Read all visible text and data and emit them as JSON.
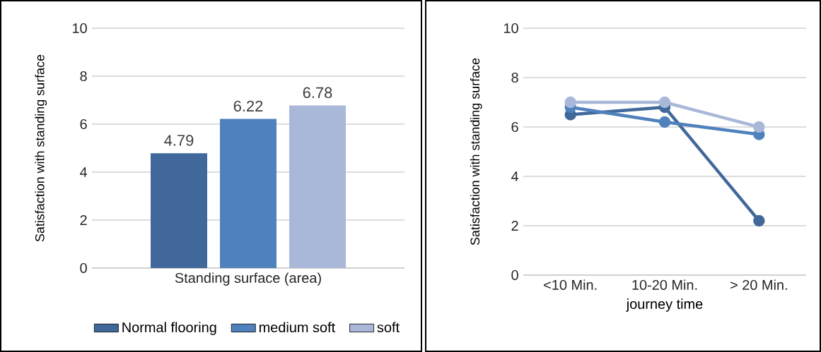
{
  "chart_data": [
    {
      "type": "bar",
      "categories": [
        "Standing surface (area)"
      ],
      "ylabel": "Satisfaction with standing surface",
      "ylim": [
        0,
        10
      ],
      "yticks": [
        0,
        2,
        4,
        6,
        8,
        10
      ],
      "grid": "y",
      "legend": "bottom",
      "data_labels": true,
      "series": [
        {
          "name": "Normal flooring",
          "color": "#41689a",
          "values": [
            4.79
          ]
        },
        {
          "name": "medium soft",
          "color": "#4f81bd",
          "values": [
            6.22
          ]
        },
        {
          "name": "soft",
          "color": "#a9b8d8",
          "values": [
            6.78
          ]
        }
      ]
    },
    {
      "type": "line",
      "categories": [
        "<10 Min.",
        "10-20 Min.",
        "> 20 Min."
      ],
      "xlabel": "journey time",
      "ylabel": "Satisfaction with standing surface",
      "ylim": [
        0,
        10
      ],
      "yticks": [
        0,
        2,
        4,
        6,
        8,
        10
      ],
      "grid": "y",
      "marker": "circle",
      "series": [
        {
          "color": "#41689a",
          "values": [
            6.5,
            6.8,
            2.2
          ]
        },
        {
          "color": "#4f81bd",
          "values": [
            6.8,
            6.2,
            5.7
          ]
        },
        {
          "color": "#a9b8d8",
          "values": [
            7.0,
            7.0,
            6.0
          ]
        }
      ]
    }
  ]
}
